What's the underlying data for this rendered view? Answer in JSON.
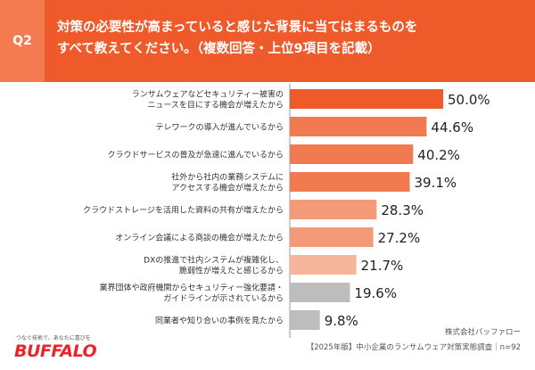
{
  "header": {
    "badge": "Q2",
    "title_line1": "対策の必要性が高まっていると感じた背景に当てはまるものを",
    "title_line2": "すべて教えてください。（複数回答・上位9項目を記載）"
  },
  "chart_data": {
    "type": "bar",
    "orientation": "horizontal",
    "categories": [
      [
        "ランサムウェアなどセキュリティー被害の",
        "ニュースを目にする機会が増えたから"
      ],
      [
        "テレワークの導入が進んでいるから"
      ],
      [
        "クラウドサービスの普及が急速に進んでいるから"
      ],
      [
        "社外から社内の業務システムに",
        "アクセスする機会が増えたから"
      ],
      [
        "クラウドストレージを活用した資料の共有が増えたから"
      ],
      [
        "オンライン会議による商談の機会が増えたから"
      ],
      [
        "DXの推進で社内システムが複雑化し、",
        "脆弱性が増えたと感じるから"
      ],
      [
        "業界団体や政府機関からセキュリティー強化要請・",
        "ガイドラインが示されているから"
      ],
      [
        "同業者や知り合いの事例を見たから"
      ]
    ],
    "values": [
      50.0,
      44.6,
      40.2,
      39.1,
      28.3,
      27.2,
      21.7,
      19.6,
      9.8
    ],
    "value_labels": [
      "50.0%",
      "44.6%",
      "40.2%",
      "39.1%",
      "28.3%",
      "27.2%",
      "21.7%",
      "19.6%",
      "9.8%"
    ],
    "bar_colors": [
      "#ef5a2a",
      "#f27a50",
      "#f27a50",
      "#f27a50",
      "#f49a78",
      "#f49a78",
      "#f7b59c",
      "#bdbdbd",
      "#bdbdbd"
    ],
    "xlim": [
      0,
      50
    ]
  },
  "footer": {
    "logo_tagline": "つなぐ技術で、あなたに喜びを",
    "logo": "BUFFALO",
    "company": "株式会社バッファロー",
    "survey_note": "【2025年版】中小企業のランサムウェア対策実態調査｜n=92"
  }
}
